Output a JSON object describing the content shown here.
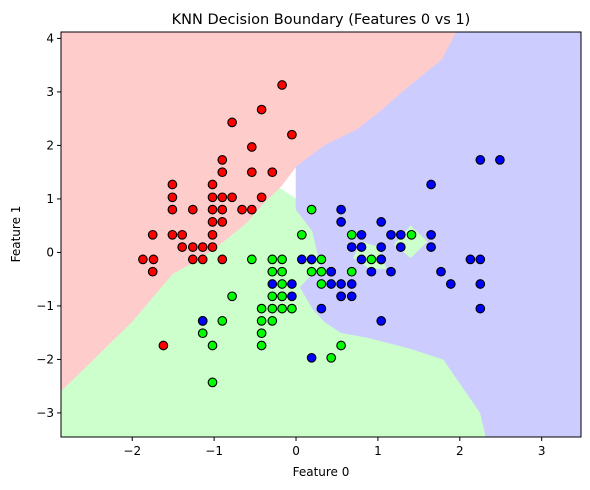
{
  "chart_data": {
    "type": "scatter",
    "title": "KNN Decision Boundary (Features 0 vs 1)",
    "xlabel": "Feature 0",
    "ylabel": "Feature 1",
    "xlim": [
      -2.87,
      3.48
    ],
    "ylim": [
      -3.45,
      4.12
    ],
    "xticks": [
      "-2",
      "-1",
      "0",
      "1",
      "2",
      "3"
    ],
    "yticks": [
      "-3",
      "-2",
      "-1",
      "0",
      "1",
      "2",
      "3",
      "4"
    ],
    "grid": false,
    "legend": "none",
    "colors": {
      "class0_point": "#ff0000",
      "class1_point": "#00ff00",
      "class2_point": "#0000ff",
      "class0_region": "#ffcccc",
      "class1_region": "#ccffcc",
      "class2_region": "#ccccff"
    },
    "regions": [
      {
        "class": 0,
        "polygon": [
          [
            -2.87,
            -0.05
          ],
          [
            -2.87,
            4.12
          ],
          [
            1.96,
            4.12
          ],
          [
            1.78,
            3.6
          ],
          [
            1.3,
            3.0
          ],
          [
            1.0,
            2.6
          ],
          [
            0.75,
            2.3
          ],
          [
            0.35,
            2.0
          ],
          [
            0.0,
            1.6
          ],
          [
            -0.2,
            1.2
          ],
          [
            -0.4,
            0.9
          ],
          [
            -0.6,
            0.55
          ],
          [
            -0.8,
            0.3
          ],
          [
            -1.0,
            0.05
          ],
          [
            -1.2,
            -0.15
          ],
          [
            -1.5,
            -0.4
          ],
          [
            -2.0,
            -1.3
          ],
          [
            -2.6,
            -2.2
          ],
          [
            -2.87,
            -2.6
          ]
        ]
      },
      {
        "class": 1,
        "polygon": [
          [
            -2.87,
            -3.45
          ],
          [
            2.32,
            -3.45
          ],
          [
            2.25,
            -3.0
          ],
          [
            1.8,
            -2.0
          ],
          [
            1.4,
            -1.8
          ],
          [
            0.9,
            -1.6
          ],
          [
            0.55,
            -1.5
          ],
          [
            0.35,
            -1.3
          ],
          [
            0.2,
            -1.05
          ],
          [
            0.05,
            -0.65
          ],
          [
            0.3,
            -0.25
          ],
          [
            0.2,
            0.4
          ],
          [
            0.0,
            0.8
          ],
          [
            0.0,
            1.0
          ],
          [
            -0.2,
            1.2
          ],
          [
            -0.4,
            0.9
          ],
          [
            -0.6,
            0.55
          ],
          [
            -0.8,
            0.3
          ],
          [
            -1.0,
            0.05
          ],
          [
            -1.2,
            -0.15
          ],
          [
            -1.5,
            -0.4
          ],
          [
            -2.0,
            -1.3
          ],
          [
            -2.6,
            -2.2
          ],
          [
            -2.87,
            -2.6
          ]
        ]
      },
      {
        "class": 2,
        "polygon": [
          [
            1.96,
            4.12
          ],
          [
            3.48,
            4.12
          ],
          [
            3.48,
            -3.45
          ],
          [
            2.32,
            -3.45
          ],
          [
            2.25,
            -3.0
          ],
          [
            1.8,
            -2.0
          ],
          [
            1.4,
            -1.8
          ],
          [
            0.9,
            -1.6
          ],
          [
            0.55,
            -1.5
          ],
          [
            0.35,
            -1.3
          ],
          [
            0.2,
            -1.05
          ],
          [
            0.05,
            -0.65
          ],
          [
            0.3,
            -0.25
          ],
          [
            0.2,
            0.4
          ],
          [
            0.0,
            0.8
          ],
          [
            0.0,
            1.6
          ],
          [
            0.35,
            2.0
          ],
          [
            0.75,
            2.3
          ],
          [
            1.0,
            2.6
          ],
          [
            1.3,
            3.0
          ],
          [
            1.78,
            3.6
          ]
        ]
      },
      {
        "class": 1,
        "polygon": [
          [
            0.7,
            -0.1
          ],
          [
            0.9,
            -0.3
          ],
          [
            1.1,
            -0.3
          ],
          [
            1.0,
            0.1
          ],
          [
            0.8,
            0.2
          ]
        ]
      },
      {
        "class": 1,
        "polygon": [
          [
            1.2,
            0.15
          ],
          [
            1.4,
            0.5
          ],
          [
            1.6,
            0.2
          ],
          [
            1.4,
            -0.1
          ]
        ]
      }
    ],
    "series": [
      {
        "class": 0,
        "points": [
          [
            -1.87,
            -0.13
          ],
          [
            -1.74,
            -0.13
          ],
          [
            -1.75,
            -0.36
          ],
          [
            -1.51,
            0.33
          ],
          [
            -1.51,
            0.8
          ],
          [
            -1.51,
            1.03
          ],
          [
            -1.51,
            1.27
          ],
          [
            -1.39,
            0.33
          ],
          [
            -1.39,
            0.1
          ],
          [
            -1.26,
            -0.13
          ],
          [
            -1.26,
            0.1
          ],
          [
            -1.26,
            0.8
          ],
          [
            -1.14,
            -0.13
          ],
          [
            -1.14,
            0.1
          ],
          [
            -1.02,
            0.1
          ],
          [
            -1.02,
            0.33
          ],
          [
            -1.02,
            0.57
          ],
          [
            -1.02,
            0.8
          ],
          [
            -1.02,
            1.03
          ],
          [
            -1.02,
            1.27
          ],
          [
            -0.9,
            -0.13
          ],
          [
            -0.9,
            0.57
          ],
          [
            -0.9,
            0.8
          ],
          [
            -0.9,
            1.03
          ],
          [
            -0.9,
            1.5
          ],
          [
            -0.9,
            1.73
          ],
          [
            -0.78,
            1.03
          ],
          [
            -0.78,
            2.43
          ],
          [
            -0.66,
            0.8
          ],
          [
            -0.54,
            0.8
          ],
          [
            -0.54,
            1.5
          ],
          [
            -0.54,
            1.97
          ],
          [
            -0.42,
            1.03
          ],
          [
            -0.42,
            2.67
          ],
          [
            -0.29,
            1.5
          ],
          [
            -0.17,
            3.13
          ],
          [
            -0.05,
            2.2
          ],
          [
            -1.62,
            -1.74
          ],
          [
            -1.75,
            0.33
          ]
        ]
      },
      {
        "class": 1,
        "points": [
          [
            -1.14,
            -1.28
          ],
          [
            -1.14,
            -1.51
          ],
          [
            -1.02,
            -1.74
          ],
          [
            -1.02,
            -2.43
          ],
          [
            -0.9,
            -1.28
          ],
          [
            -0.78,
            -0.82
          ],
          [
            -0.54,
            -0.13
          ],
          [
            -0.42,
            -1.05
          ],
          [
            -0.42,
            -1.28
          ],
          [
            -0.42,
            -1.51
          ],
          [
            -0.42,
            -1.74
          ],
          [
            -0.29,
            -0.82
          ],
          [
            -0.29,
            -1.05
          ],
          [
            -0.29,
            -1.28
          ],
          [
            -0.29,
            -0.13
          ],
          [
            -0.29,
            -0.36
          ],
          [
            -0.17,
            -0.13
          ],
          [
            -0.17,
            -0.36
          ],
          [
            -0.17,
            -0.59
          ],
          [
            -0.17,
            -0.82
          ],
          [
            -0.17,
            -1.05
          ],
          [
            -0.05,
            -1.05
          ],
          [
            0.07,
            0.33
          ],
          [
            0.19,
            0.8
          ],
          [
            0.19,
            -0.36
          ],
          [
            0.31,
            -0.13
          ],
          [
            0.31,
            -0.36
          ],
          [
            0.31,
            -0.59
          ],
          [
            0.43,
            -0.36
          ],
          [
            0.43,
            -1.97
          ],
          [
            0.55,
            -0.82
          ],
          [
            0.55,
            -1.74
          ],
          [
            0.68,
            -0.36
          ],
          [
            0.68,
            0.33
          ],
          [
            0.92,
            -0.13
          ],
          [
            1.04,
            -0.13
          ],
          [
            1.41,
            0.33
          ],
          [
            0.19,
            -0.13
          ],
          [
            -0.17,
            -0.82
          ]
        ]
      },
      {
        "class": 2,
        "points": [
          [
            -1.14,
            -1.28
          ],
          [
            -0.29,
            -0.59
          ],
          [
            -0.05,
            -0.59
          ],
          [
            -0.05,
            -0.82
          ],
          [
            0.07,
            -0.13
          ],
          [
            0.19,
            -0.13
          ],
          [
            0.19,
            -1.97
          ],
          [
            0.31,
            -1.05
          ],
          [
            0.43,
            -0.59
          ],
          [
            0.43,
            -0.36
          ],
          [
            0.55,
            -0.59
          ],
          [
            0.55,
            -0.82
          ],
          [
            0.55,
            0.57
          ],
          [
            0.55,
            0.8
          ],
          [
            0.68,
            0.1
          ],
          [
            0.68,
            -0.59
          ],
          [
            0.68,
            -0.82
          ],
          [
            0.8,
            0.33
          ],
          [
            0.8,
            0.1
          ],
          [
            0.8,
            -0.13
          ],
          [
            0.92,
            -0.36
          ],
          [
            1.04,
            0.1
          ],
          [
            1.04,
            0.57
          ],
          [
            1.04,
            -0.13
          ],
          [
            1.04,
            -1.28
          ],
          [
            1.16,
            0.33
          ],
          [
            1.16,
            -0.36
          ],
          [
            1.28,
            0.33
          ],
          [
            1.28,
            0.1
          ],
          [
            1.65,
            0.33
          ],
          [
            1.65,
            0.1
          ],
          [
            1.65,
            1.27
          ],
          [
            1.77,
            -0.36
          ],
          [
            1.89,
            -0.59
          ],
          [
            2.13,
            -0.13
          ],
          [
            2.25,
            1.73
          ],
          [
            2.25,
            -0.13
          ],
          [
            2.25,
            -0.59
          ],
          [
            2.25,
            -1.05
          ],
          [
            2.49,
            1.73
          ]
        ]
      }
    ]
  }
}
